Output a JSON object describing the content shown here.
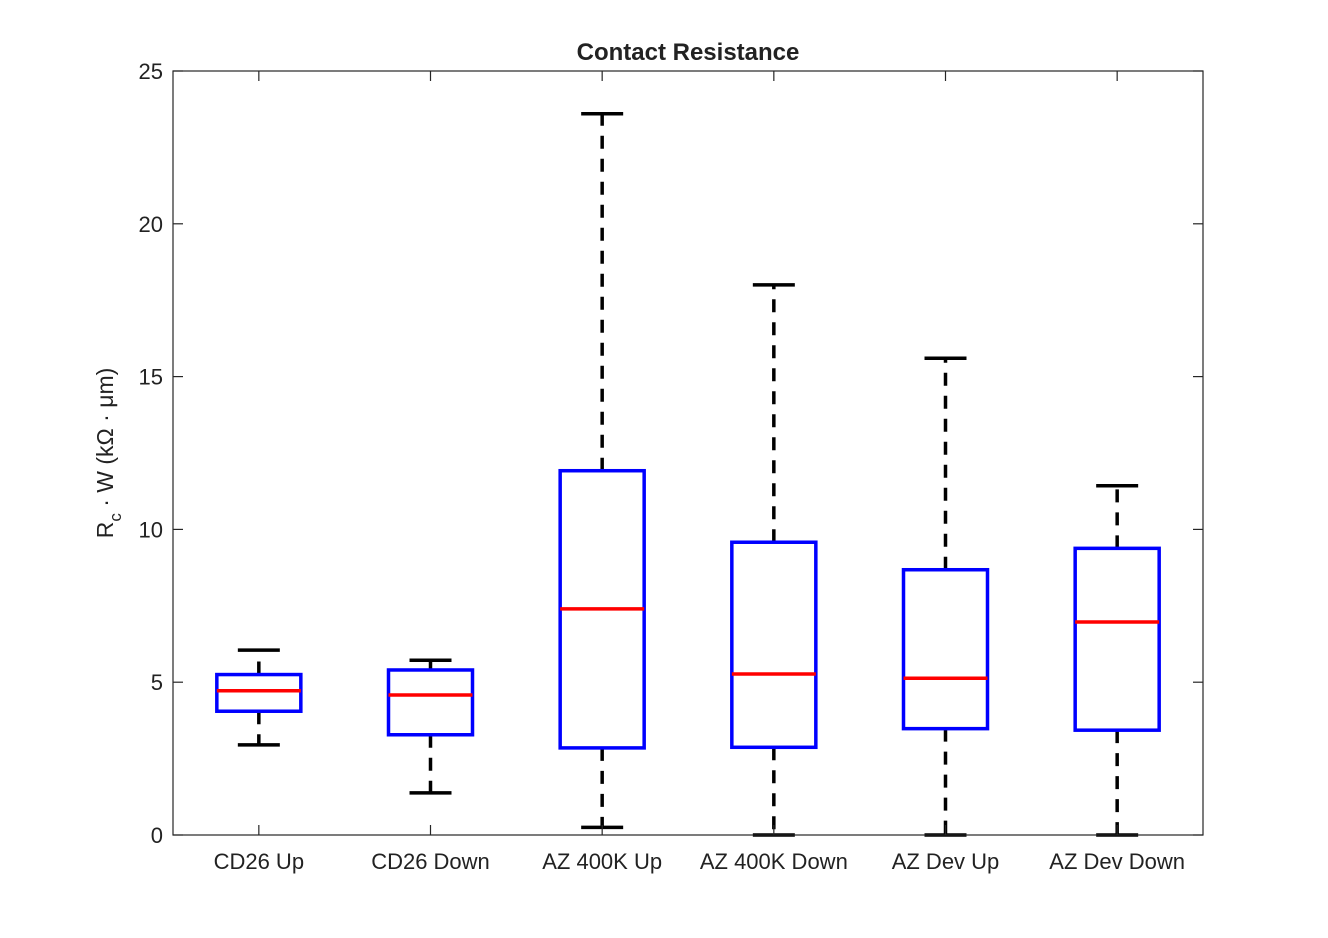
{
  "chart_data": {
    "type": "box",
    "title": "Contact Resistance",
    "xlabel": "",
    "ylabel_main": "R",
    "ylabel_sub": "c",
    "ylabel_rest": " · W (kΩ · μm)",
    "ylim": [
      0,
      25
    ],
    "yticks": [
      0,
      5,
      10,
      15,
      20,
      25
    ],
    "grid": false,
    "categories": [
      "CD26 Up",
      "CD26 Down",
      "AZ 400K Up",
      "AZ 400K Down",
      "AZ Dev Up",
      "AZ Dev Down"
    ],
    "boxes": [
      {
        "min": 2.95,
        "q1": 4.05,
        "median": 4.72,
        "q3": 5.25,
        "max": 6.05
      },
      {
        "min": 1.38,
        "q1": 3.28,
        "median": 4.58,
        "q3": 5.4,
        "max": 5.72
      },
      {
        "min": 0.25,
        "q1": 2.85,
        "median": 7.4,
        "q3": 11.92,
        "max": 23.6
      },
      {
        "min": 0.0,
        "q1": 2.87,
        "median": 5.27,
        "q3": 9.58,
        "max": 18.0
      },
      {
        "min": 0.0,
        "q1": 3.48,
        "median": 5.13,
        "q3": 8.68,
        "max": 15.6
      },
      {
        "min": 0.0,
        "q1": 3.43,
        "median": 6.97,
        "q3": 9.38,
        "max": 11.43
      }
    ],
    "colors": {
      "box": "#0000ff",
      "median": "#ff0000",
      "whisker": "#000000",
      "axis": "#262626"
    }
  }
}
